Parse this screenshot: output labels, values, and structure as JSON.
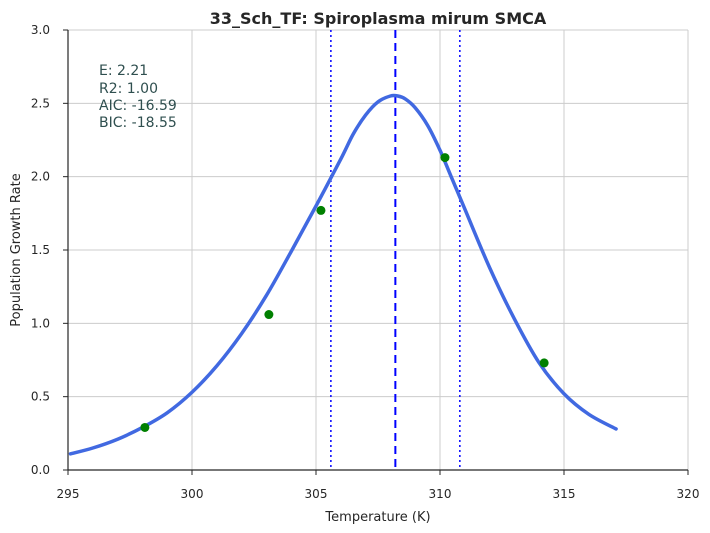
{
  "chart_data": {
    "type": "line",
    "title": "33_Sch_TF: Spiroplasma mirum SMCA",
    "xlabel": "Temperature (K)",
    "ylabel": "Population Growth Rate",
    "xlim": [
      295,
      320
    ],
    "ylim": [
      0,
      3.0
    ],
    "x_ticks": [
      295,
      300,
      305,
      310,
      315,
      320
    ],
    "y_ticks": [
      0.0,
      0.5,
      1.0,
      1.5,
      2.0,
      2.5,
      3.0
    ],
    "x_tick_labels": [
      "295",
      "300",
      "305",
      "310",
      "315",
      "320"
    ],
    "y_tick_labels": [
      "0.0",
      "0.5",
      "1.0",
      "1.5",
      "2.0",
      "2.5",
      "3.0"
    ],
    "grid": true,
    "series": [
      {
        "kind": "line",
        "color": "#4169e1",
        "x": [
          295.1,
          296.0,
          297.0,
          298.0,
          299.0,
          300.0,
          301.0,
          302.0,
          303.0,
          304.0,
          305.0,
          306.0,
          306.5,
          307.0,
          307.5,
          308.0,
          308.3,
          308.6,
          309.0,
          309.5,
          310.0,
          310.5,
          311.0,
          312.0,
          313.0,
          314.0,
          315.0,
          316.0,
          317.1
        ],
        "y": [
          0.11,
          0.15,
          0.21,
          0.29,
          0.39,
          0.53,
          0.71,
          0.93,
          1.19,
          1.49,
          1.8,
          2.12,
          2.29,
          2.42,
          2.51,
          2.55,
          2.55,
          2.53,
          2.47,
          2.35,
          2.18,
          1.98,
          1.78,
          1.38,
          1.03,
          0.73,
          0.52,
          0.38,
          0.28
        ]
      },
      {
        "kind": "scatter",
        "color": "#008000",
        "x": [
          298.1,
          303.1,
          305.2,
          310.2,
          314.2
        ],
        "y": [
          0.29,
          1.06,
          1.77,
          2.13,
          0.73
        ]
      }
    ],
    "vlines": [
      {
        "x": 308.2,
        "style": "dashed",
        "color": "#0000ff"
      },
      {
        "x": 305.6,
        "style": "dotted",
        "color": "#0000ff"
      },
      {
        "x": 310.8,
        "style": "dotted",
        "color": "#0000ff"
      }
    ],
    "annotations": [
      "E:  2.21",
      "R2:  1.00",
      "AIC: -16.59",
      "BIC: -18.55"
    ]
  }
}
